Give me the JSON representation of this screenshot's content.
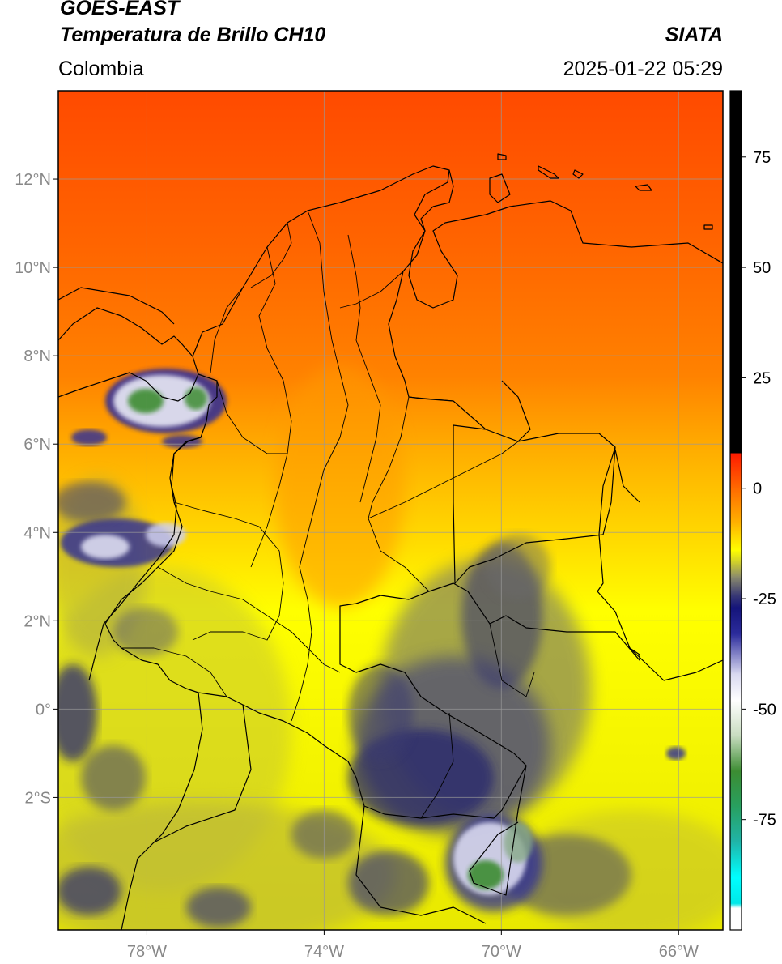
{
  "header": {
    "satellite": "GOES-EAST",
    "product": "Temperatura de Brillo CH10",
    "region": "Colombia",
    "agency": "SIATA",
    "datetime": "2025-01-22 05:29"
  },
  "map": {
    "lon_range": [
      -80,
      -65
    ],
    "lat_range": [
      -5,
      14
    ],
    "lon_ticks": [
      {
        "value": -78,
        "label": "78°W"
      },
      {
        "value": -74,
        "label": "74°W"
      },
      {
        "value": -70,
        "label": "70°W"
      },
      {
        "value": -66,
        "label": "66°W"
      }
    ],
    "lat_ticks": [
      {
        "value": 12,
        "label": "12°N"
      },
      {
        "value": 10,
        "label": "10°N"
      },
      {
        "value": 8,
        "label": "8°N"
      },
      {
        "value": 6,
        "label": "6°N"
      },
      {
        "value": 4,
        "label": "4°N"
      },
      {
        "value": 2,
        "label": "2°N"
      },
      {
        "value": 0,
        "label": "0°"
      },
      {
        "value": -2,
        "label": "2°S"
      }
    ],
    "grid": true
  },
  "colorbar": {
    "range": [
      -100,
      90
    ],
    "ticks": [
      {
        "value": 75,
        "label": "75"
      },
      {
        "value": 50,
        "label": "50"
      },
      {
        "value": 25,
        "label": "25"
      },
      {
        "value": 0,
        "label": "0"
      },
      {
        "value": -25,
        "label": "-25"
      },
      {
        "value": -50,
        "label": "-50"
      },
      {
        "value": -75,
        "label": "-75"
      }
    ],
    "stops": [
      {
        "value": 90,
        "color": "#000000"
      },
      {
        "value": 8,
        "color": "#000000"
      },
      {
        "value": 7.9,
        "color": "#ff1a00"
      },
      {
        "value": 0,
        "color": "#ff6a00"
      },
      {
        "value": -8,
        "color": "#ffb400"
      },
      {
        "value": -14,
        "color": "#ffff00"
      },
      {
        "value": -17,
        "color": "#c8c832"
      },
      {
        "value": -20,
        "color": "#8c8c6c"
      },
      {
        "value": -24,
        "color": "#3c3c74"
      },
      {
        "value": -27,
        "color": "#14147a"
      },
      {
        "value": -33,
        "color": "#2c2c9c"
      },
      {
        "value": -42,
        "color": "#d8d8f0"
      },
      {
        "value": -48,
        "color": "#ffffff"
      },
      {
        "value": -56,
        "color": "#c8dcc0"
      },
      {
        "value": -64,
        "color": "#3c8c32"
      },
      {
        "value": -72,
        "color": "#28a060"
      },
      {
        "value": -80,
        "color": "#20b4a8"
      },
      {
        "value": -88,
        "color": "#00ffff"
      },
      {
        "value": -94,
        "color": "#00e8e8"
      },
      {
        "value": -95,
        "color": "#ffffff"
      },
      {
        "value": -100,
        "color": "#ffffff"
      }
    ]
  },
  "colors": {
    "grid": "#999999",
    "tick_text": "#888888",
    "border": "#000000"
  }
}
